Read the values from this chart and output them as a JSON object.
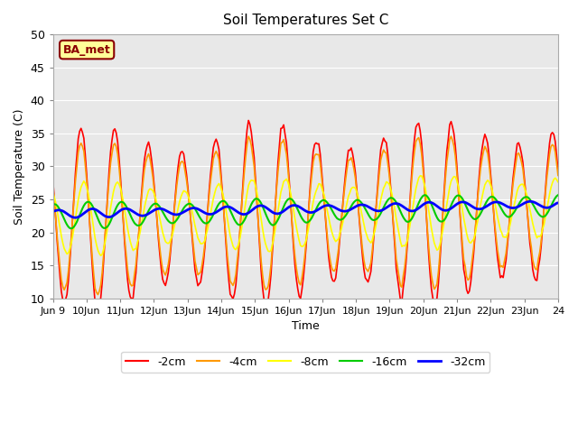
{
  "title": "Soil Temperatures Set C",
  "xlabel": "Time",
  "ylabel": "Soil Temperature (C)",
  "ylim": [
    10,
    50
  ],
  "xlim": [
    0,
    360
  ],
  "bg_color": "#e8e8e8",
  "fig_color": "#ffffff",
  "label_text": "BA_met",
  "series_labels": [
    "-2cm",
    "-4cm",
    "-8cm",
    "-16cm",
    "-32cm"
  ],
  "series_colors": [
    "#ff0000",
    "#ff9900",
    "#ffff00",
    "#00cc00",
    "#0000ff"
  ],
  "series_linewidths": [
    1.2,
    1.2,
    1.2,
    1.5,
    2.0
  ],
  "xtick_labels": [
    "Jun 9",
    "Jun",
    "10Jun",
    "11Jun",
    "12Jun",
    "13Jun",
    "14Jun",
    "15Jun",
    "16Jun",
    "17Jun",
    "18Jun",
    "19Jun",
    "20Jun",
    "21Jun",
    "22Jun",
    "23Jun",
    "24"
  ],
  "grid_color": "#ffffff",
  "legend_bg": "#ffffff"
}
